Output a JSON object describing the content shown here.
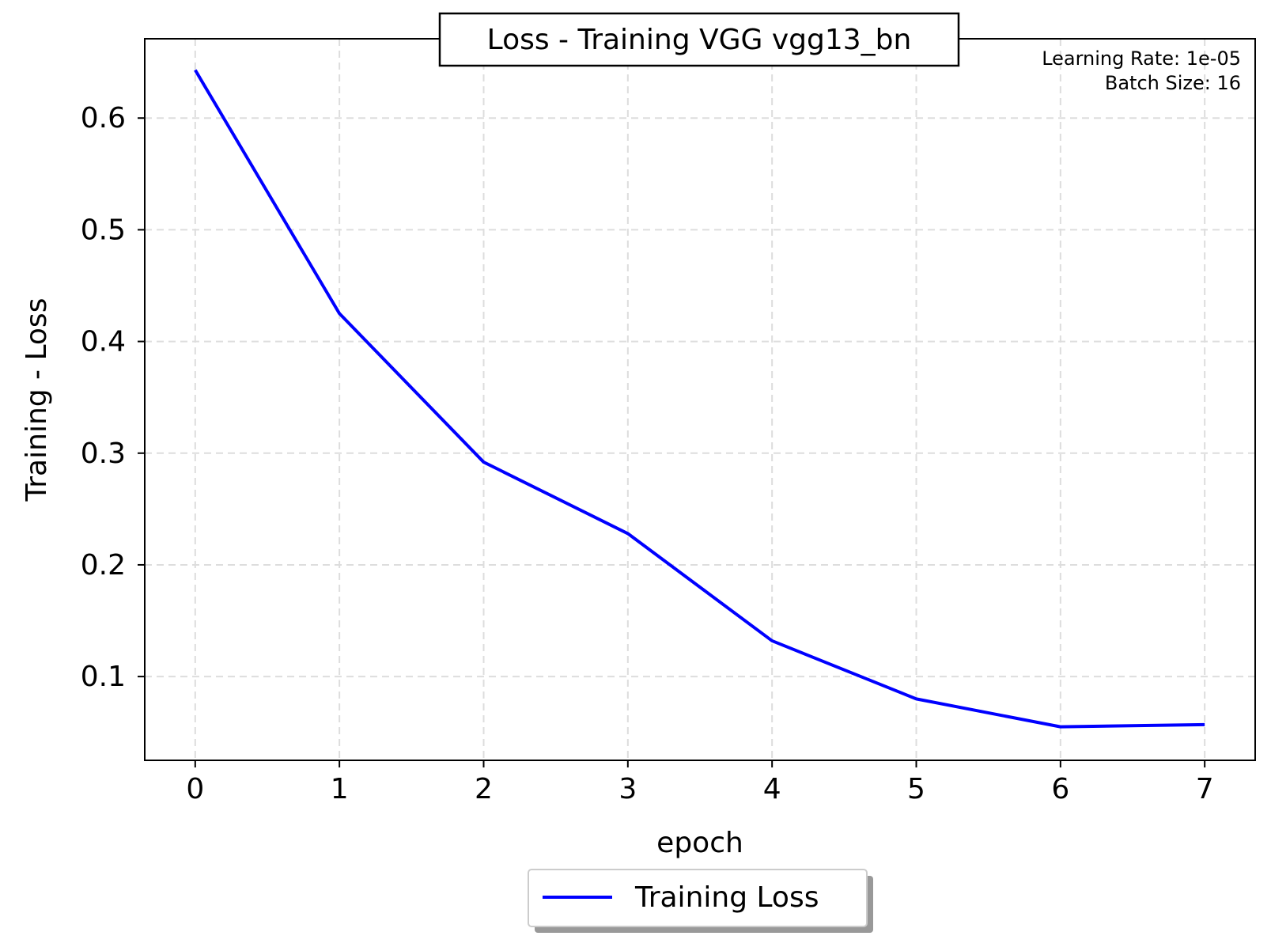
{
  "chart_data": {
    "type": "line",
    "title": "Loss - Training VGG vgg13_bn",
    "xlabel": "epoch",
    "ylabel": "Training - Loss",
    "annotations": [
      "Learning Rate: 1e-05",
      "Batch Size: 16"
    ],
    "x": [
      0,
      1,
      2,
      3,
      4,
      5,
      6,
      7
    ],
    "series": [
      {
        "name": "Training Loss",
        "values": [
          0.643,
          0.425,
          0.292,
          0.228,
          0.132,
          0.08,
          0.055,
          0.057
        ],
        "color": "#0000ff"
      }
    ],
    "xticks": [
      "0",
      "1",
      "2",
      "3",
      "4",
      "5",
      "6",
      "7"
    ],
    "yticks": [
      "0.1",
      "0.2",
      "0.3",
      "0.4",
      "0.5",
      "0.6"
    ],
    "xlim": [
      -0.35,
      7.35
    ],
    "ylim": [
      0.025,
      0.671
    ],
    "grid": true,
    "legend_position": "bottom-center"
  }
}
